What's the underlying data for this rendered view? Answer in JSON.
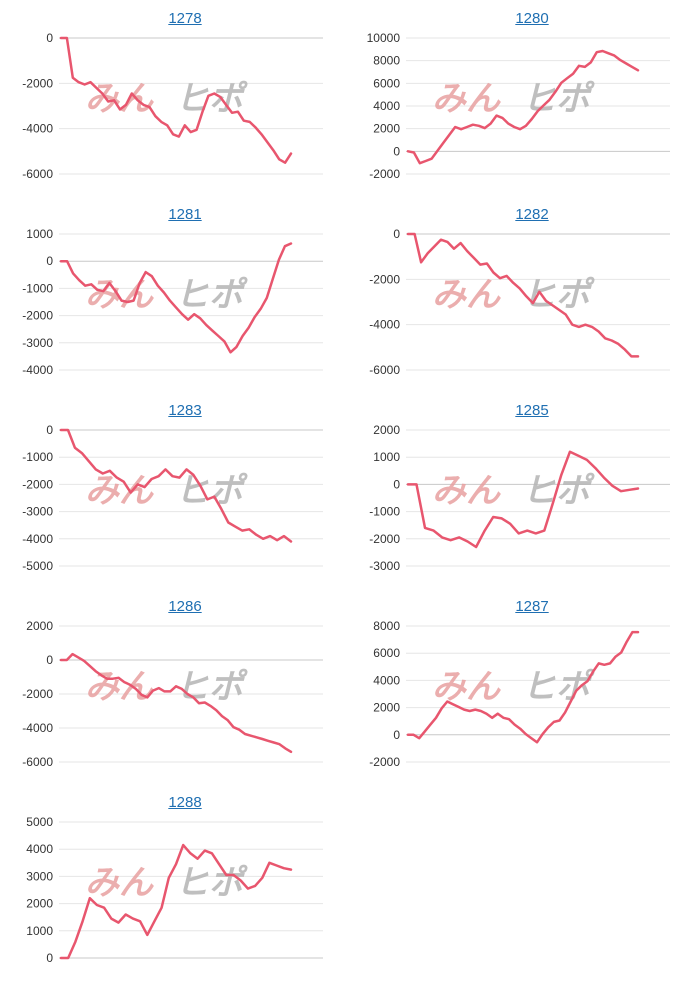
{
  "colors": {
    "line": "#e8566e",
    "grid": "#e6e6e6",
    "zero_line": "#c8c8c8",
    "title_link": "#1f6fb2",
    "watermark_red": "#e8a0a0",
    "watermark_gray": "#b5b5b5"
  },
  "watermark": {
    "left": "みん",
    "right": "ヒポ"
  },
  "chart_data": [
    {
      "id": "1278",
      "title": "1278",
      "type": "line",
      "ylim": [
        -6000,
        0
      ],
      "yticks": [
        0,
        -2000,
        -4000,
        -6000
      ],
      "values": [
        0,
        0,
        -1750,
        -1950,
        -2050,
        -1950,
        -2200,
        -2450,
        -2800,
        -2750,
        -3150,
        -2950,
        -2450,
        -2750,
        -2950,
        -3050,
        -3450,
        -3700,
        -3850,
        -4250,
        -4350,
        -3850,
        -4150,
        -4050,
        -3250,
        -2550,
        -2450,
        -2600,
        -2950,
        -3300,
        -3250,
        -3650,
        -3700,
        -3950,
        -4250,
        -4600,
        -4950,
        -5350,
        -5500,
        -5100
      ]
    },
    {
      "id": "1280",
      "title": "1280",
      "type": "line",
      "ylim": [
        -2000,
        10000
      ],
      "yticks": [
        10000,
        8000,
        6000,
        4000,
        2000,
        0,
        -2000
      ],
      "values": [
        0,
        -100,
        -1050,
        -850,
        -650,
        50,
        750,
        1450,
        2150,
        1950,
        2150,
        2350,
        2250,
        2050,
        2450,
        3150,
        2950,
        2450,
        2150,
        1950,
        2250,
        2850,
        3550,
        4050,
        4550,
        5250,
        6050,
        6450,
        6850,
        7550,
        7450,
        7850,
        8750,
        8850,
        8650,
        8450,
        8050,
        7750,
        7450,
        7150
      ]
    },
    {
      "id": "1281",
      "title": "1281",
      "type": "line",
      "ylim": [
        -4000,
        1000
      ],
      "yticks": [
        1000,
        0,
        -1000,
        -2000,
        -3000,
        -4000
      ],
      "values": [
        0,
        0,
        -450,
        -700,
        -900,
        -850,
        -1050,
        -1100,
        -800,
        -1100,
        -1450,
        -1500,
        -1450,
        -800,
        -400,
        -550,
        -900,
        -1150,
        -1450,
        -1700,
        -1950,
        -2150,
        -1950,
        -2100,
        -2350,
        -2550,
        -2750,
        -2950,
        -3350,
        -3150,
        -2750,
        -2450,
        -2050,
        -1750,
        -1350,
        -650,
        50,
        550,
        650
      ]
    },
    {
      "id": "1282",
      "title": "1282",
      "type": "line",
      "ylim": [
        -6000,
        0
      ],
      "yticks": [
        0,
        -2000,
        -4000,
        -6000
      ],
      "values": [
        0,
        0,
        -1250,
        -850,
        -550,
        -250,
        -350,
        -650,
        -400,
        -750,
        -1050,
        -1350,
        -1300,
        -1700,
        -1950,
        -1850,
        -2150,
        -2400,
        -2750,
        -3050,
        -2550,
        -2950,
        -3150,
        -3350,
        -3550,
        -4000,
        -4100,
        -4000,
        -4100,
        -4300,
        -4600,
        -4700,
        -4850,
        -5100,
        -5400,
        -5400
      ]
    },
    {
      "id": "1283",
      "title": "1283",
      "type": "line",
      "ylim": [
        -5000,
        0
      ],
      "yticks": [
        0,
        -1000,
        -2000,
        -3000,
        -4000,
        -5000
      ],
      "values": [
        0,
        0,
        -650,
        -850,
        -1150,
        -1450,
        -1600,
        -1500,
        -1750,
        -1900,
        -2300,
        -2000,
        -2100,
        -1800,
        -1700,
        -1450,
        -1700,
        -1750,
        -1450,
        -1650,
        -2050,
        -2550,
        -2450,
        -2900,
        -3400,
        -3550,
        -3700,
        -3650,
        -3850,
        -4000,
        -3900,
        -4050,
        -3900,
        -4100
      ]
    },
    {
      "id": "1285",
      "title": "1285",
      "type": "line",
      "ylim": [
        -3000,
        2000
      ],
      "yticks": [
        2000,
        1000,
        0,
        -1000,
        -2000,
        -3000
      ],
      "values": [
        0,
        0,
        -1600,
        -1700,
        -1950,
        -2050,
        -1950,
        -2100,
        -2300,
        -1700,
        -1200,
        -1250,
        -1450,
        -1800,
        -1700,
        -1800,
        -1700,
        -700,
        350,
        1200,
        1050,
        900,
        600,
        250,
        -50,
        -250,
        -200,
        -150
      ]
    },
    {
      "id": "1286",
      "title": "1286",
      "type": "line",
      "ylim": [
        -6000,
        2000
      ],
      "yticks": [
        2000,
        0,
        -2000,
        -4000,
        -6000
      ],
      "values": [
        0,
        0,
        350,
        150,
        -50,
        -350,
        -650,
        -900,
        -1100,
        -1100,
        -1050,
        -1300,
        -1450,
        -1700,
        -2050,
        -2200,
        -1800,
        -1650,
        -1850,
        -1850,
        -1550,
        -1700,
        -2000,
        -2200,
        -2550,
        -2500,
        -2700,
        -2950,
        -3300,
        -3550,
        -3950,
        -4100,
        -4350,
        -4450,
        -4550,
        -4650,
        -4750,
        -4850,
        -4950,
        -5200,
        -5400
      ]
    },
    {
      "id": "1287",
      "title": "1287",
      "type": "line",
      "ylim": [
        -2000,
        8000
      ],
      "yticks": [
        8000,
        6000,
        4000,
        2000,
        0,
        -2000
      ],
      "values": [
        0,
        0,
        -250,
        250,
        750,
        1250,
        1950,
        2450,
        2250,
        2050,
        1850,
        1750,
        1850,
        1750,
        1550,
        1250,
        1550,
        1250,
        1150,
        750,
        450,
        50,
        -250,
        -550,
        50,
        550,
        950,
        1050,
        1650,
        2450,
        3250,
        3650,
        3950,
        4650,
        5250,
        5150,
        5250,
        5750,
        6050,
        6850,
        7550,
        7550
      ]
    },
    {
      "id": "1288",
      "title": "1288",
      "type": "line",
      "ylim": [
        0,
        5000
      ],
      "yticks": [
        5000,
        4000,
        3000,
        2000,
        1000,
        0
      ],
      "values": [
        0,
        0,
        600,
        1350,
        2200,
        1950,
        1850,
        1450,
        1300,
        1600,
        1450,
        1350,
        850,
        1350,
        1850,
        2950,
        3450,
        4150,
        3850,
        3650,
        3950,
        3850,
        3450,
        3050,
        3050,
        2850,
        2550,
        2650,
        2950,
        3500,
        3400,
        3300,
        3250
      ]
    }
  ]
}
